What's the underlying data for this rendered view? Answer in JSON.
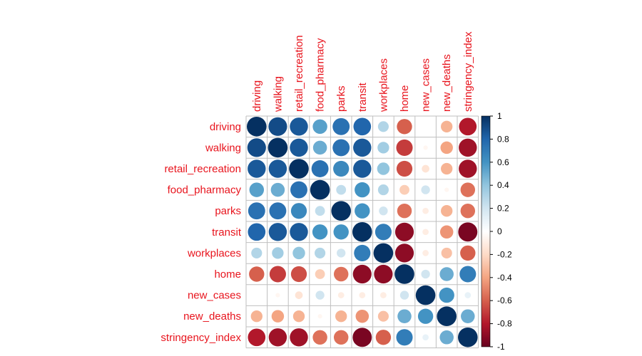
{
  "chart_data": {
    "type": "heatmap",
    "variables": [
      "driving",
      "walking",
      "retail_recreation",
      "food_pharmacy",
      "parks",
      "transit",
      "workplaces",
      "home",
      "new_cases",
      "new_deaths",
      "stringency_index"
    ],
    "matrix": [
      [
        1.0,
        0.9,
        0.85,
        0.55,
        0.75,
        0.8,
        0.3,
        -0.6,
        0.0,
        -0.35,
        -0.8
      ],
      [
        0.9,
        1.0,
        0.85,
        0.5,
        0.75,
        0.85,
        0.35,
        -0.7,
        -0.05,
        -0.4,
        -0.85
      ],
      [
        0.85,
        0.85,
        1.0,
        0.75,
        0.65,
        0.85,
        0.4,
        -0.65,
        -0.15,
        -0.35,
        -0.85
      ],
      [
        0.55,
        0.5,
        0.75,
        1.0,
        0.25,
        0.6,
        0.3,
        -0.25,
        0.2,
        -0.05,
        -0.55
      ],
      [
        0.75,
        0.75,
        0.65,
        0.25,
        1.0,
        0.6,
        0.2,
        -0.55,
        -0.1,
        -0.35,
        -0.55
      ],
      [
        0.8,
        0.85,
        0.85,
        0.6,
        0.6,
        1.0,
        0.7,
        -0.9,
        -0.1,
        -0.45,
        -0.95
      ],
      [
        0.3,
        0.35,
        0.4,
        0.3,
        0.2,
        0.7,
        1.0,
        -0.9,
        -0.1,
        -0.3,
        -0.6
      ],
      [
        -0.6,
        -0.7,
        -0.65,
        -0.25,
        -0.55,
        -0.9,
        -0.9,
        1.0,
        0.2,
        0.5,
        0.7
      ],
      [
        0.0,
        -0.05,
        -0.15,
        0.2,
        -0.1,
        -0.1,
        -0.1,
        0.2,
        1.0,
        0.6,
        0.1
      ],
      [
        -0.35,
        -0.4,
        -0.35,
        -0.05,
        -0.35,
        -0.45,
        -0.3,
        0.5,
        0.6,
        1.0,
        0.5
      ],
      [
        -0.8,
        -0.85,
        -0.85,
        -0.55,
        -0.55,
        -0.95,
        -0.6,
        0.7,
        0.1,
        0.5,
        1.0
      ]
    ],
    "colorbar": {
      "ticks": [
        "1",
        "0.8",
        "0.6",
        "0.4",
        "0.2",
        "0",
        "-0.2",
        "-0.4",
        "-0.6",
        "-0.8",
        "-1"
      ],
      "range": [
        -1,
        1
      ],
      "colors": [
        "#67001f",
        "#b2182b",
        "#d6604d",
        "#f4a582",
        "#fddbc7",
        "#ffffff",
        "#d1e5f0",
        "#92c5de",
        "#4393c3",
        "#2166ac",
        "#053061"
      ]
    },
    "title": "",
    "xlabel": "",
    "ylabel": "",
    "grid": true
  }
}
